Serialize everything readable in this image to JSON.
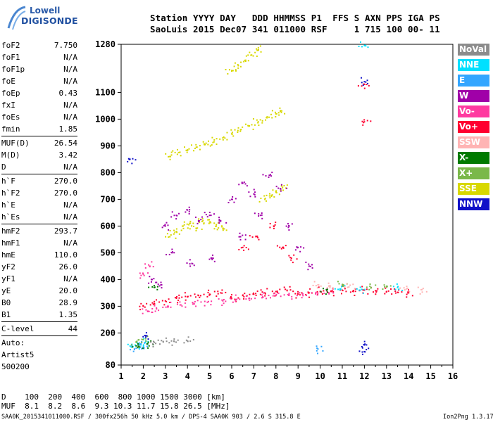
{
  "logo": {
    "brand_top": "Lowell",
    "brand_main": "DIGISONDE"
  },
  "header": {
    "line1": "Station YYYY DAY   DDD HHMMSS P1  FFS S AXN PPS IGA PS",
    "line2": "SaoLuis 2015 Dec07 341 011000 RSF     1 715 100 00- 11"
  },
  "params": {
    "group1": [
      {
        "key": "foF2",
        "value": "7.750"
      },
      {
        "key": "foF1",
        "value": "N/A"
      },
      {
        "key": "foF1p",
        "value": "N/A"
      },
      {
        "key": "foE",
        "value": "N/A"
      },
      {
        "key": "foEp",
        "value": "0.43"
      },
      {
        "key": "fxI",
        "value": "N/A"
      },
      {
        "key": "foEs",
        "value": "N/A"
      },
      {
        "key": "fmin",
        "value": "1.85"
      }
    ],
    "group2": [
      {
        "key": "MUF(D)",
        "value": "26.54"
      },
      {
        "key": "M(D)",
        "value": "3.42"
      },
      {
        "key": "D",
        "value": "N/A"
      }
    ],
    "group3": [
      {
        "key": "h`F",
        "value": "270.0"
      },
      {
        "key": "h`F2",
        "value": "270.0"
      },
      {
        "key": "h`E",
        "value": "N/A"
      },
      {
        "key": "h`Es",
        "value": "N/A"
      }
    ],
    "group4": [
      {
        "key": "hmF2",
        "value": "293.7"
      },
      {
        "key": "hmF1",
        "value": "N/A"
      },
      {
        "key": "hmE",
        "value": "110.0"
      },
      {
        "key": "yF2",
        "value": "26.0"
      },
      {
        "key": "yF1",
        "value": "N/A"
      },
      {
        "key": "yE",
        "value": "20.0"
      },
      {
        "key": "B0",
        "value": "28.9"
      },
      {
        "key": "B1",
        "value": "1.35"
      }
    ],
    "clevel": {
      "key": "C-level",
      "value": "44"
    },
    "auto": [
      "Auto:",
      "Artist5",
      "500200"
    ]
  },
  "legend": [
    {
      "label": "NoVal",
      "color": "#8c8c8c"
    },
    {
      "label": "NNE",
      "color": "#00e0ff"
    },
    {
      "label": "E",
      "color": "#33a6ff"
    },
    {
      "label": "W",
      "color": "#a000a8"
    },
    {
      "label": "Vo-",
      "color": "#ff3aa0"
    },
    {
      "label": "Vo+",
      "color": "#ff0030"
    },
    {
      "label": "SSW",
      "color": "#ffb4b4"
    },
    {
      "label": "X-",
      "color": "#007a00"
    },
    {
      "label": "X+",
      "color": "#7ab84a"
    },
    {
      "label": "SSE",
      "color": "#d8d800"
    },
    {
      "label": "NNW",
      "color": "#1010c8"
    }
  ],
  "chart_data": {
    "type": "scatter",
    "xlim": [
      1,
      16
    ],
    "ylim": [
      80,
      1280
    ],
    "x_ticks": [
      1,
      2,
      3,
      4,
      5,
      6,
      7,
      8,
      9,
      10,
      11,
      12,
      13,
      14,
      15,
      16
    ],
    "y_ticks": [
      80,
      200,
      300,
      400,
      500,
      600,
      700,
      800,
      900,
      1000,
      1100,
      1280
    ],
    "grid": false,
    "series": [
      {
        "color": "#d8d800",
        "points": [
          [
            3.2,
            860
          ],
          [
            3.6,
            875
          ],
          [
            4.0,
            885
          ],
          [
            4.4,
            895
          ],
          [
            4.8,
            905
          ],
          [
            5.2,
            915
          ],
          [
            5.6,
            930
          ],
          [
            6.0,
            945
          ],
          [
            6.4,
            960
          ],
          [
            6.8,
            975
          ],
          [
            7.2,
            990
          ],
          [
            7.6,
            1005
          ],
          [
            8.0,
            1020
          ],
          [
            8.2,
            1030
          ],
          [
            3.2,
            560
          ],
          [
            3.5,
            580
          ],
          [
            3.8,
            600
          ],
          [
            4.1,
            610
          ],
          [
            4.4,
            590
          ],
          [
            4.7,
            620
          ],
          [
            5.0,
            615
          ],
          [
            5.3,
            600
          ],
          [
            5.6,
            590
          ],
          [
            7.5,
            700
          ],
          [
            7.8,
            715
          ],
          [
            8.0,
            730
          ],
          [
            8.3,
            745
          ],
          [
            6.0,
            1180
          ],
          [
            6.3,
            1200
          ],
          [
            6.6,
            1220
          ],
          [
            6.9,
            1240
          ],
          [
            7.2,
            1260
          ]
        ]
      },
      {
        "color": "#a000a8",
        "points": [
          [
            3.0,
            600
          ],
          [
            3.5,
            640
          ],
          [
            4.0,
            660
          ],
          [
            4.5,
            620
          ],
          [
            5.0,
            640
          ],
          [
            5.5,
            620
          ],
          [
            6.0,
            700
          ],
          [
            6.5,
            760
          ],
          [
            7.0,
            720
          ],
          [
            7.7,
            790
          ],
          [
            8.2,
            740
          ],
          [
            8.6,
            600
          ],
          [
            9.0,
            520
          ],
          [
            9.5,
            450
          ],
          [
            3.3,
            500
          ],
          [
            4.2,
            460
          ],
          [
            5.1,
            480
          ],
          [
            6.4,
            560
          ],
          [
            7.3,
            640
          ],
          [
            2.4,
            400
          ],
          [
            2.8,
            380
          ]
        ]
      },
      {
        "color": "#ff0030",
        "points": [
          [
            2.0,
            300
          ],
          [
            2.5,
            310
          ],
          [
            3.0,
            320
          ],
          [
            3.5,
            330
          ],
          [
            4.0,
            335
          ],
          [
            4.5,
            340
          ],
          [
            5.0,
            345
          ],
          [
            5.5,
            350
          ],
          [
            6.0,
            330
          ],
          [
            6.5,
            340
          ],
          [
            7.0,
            345
          ],
          [
            7.5,
            350
          ],
          [
            8.0,
            355
          ],
          [
            8.5,
            360
          ],
          [
            9.0,
            345
          ],
          [
            9.5,
            350
          ],
          [
            10.0,
            355
          ],
          [
            10.5,
            355
          ],
          [
            11.0,
            360
          ],
          [
            11.5,
            355
          ],
          [
            12.0,
            360
          ],
          [
            12.5,
            358
          ],
          [
            13.0,
            355
          ],
          [
            13.5,
            352
          ],
          [
            14.0,
            350
          ],
          [
            6.5,
            520
          ],
          [
            7.1,
            560
          ],
          [
            7.9,
            600
          ],
          [
            8.3,
            520
          ],
          [
            8.7,
            480
          ],
          [
            12.0,
            990
          ],
          [
            12.0,
            1130
          ]
        ]
      },
      {
        "color": "#ff3aa0",
        "points": [
          [
            2.2,
            280
          ],
          [
            2.6,
            290
          ],
          [
            3.1,
            300
          ],
          [
            3.7,
            305
          ],
          [
            4.3,
            310
          ],
          [
            4.9,
            315
          ],
          [
            5.6,
            320
          ],
          [
            6.2,
            325
          ],
          [
            6.8,
            330
          ],
          [
            7.4,
            335
          ],
          [
            8.0,
            340
          ],
          [
            8.6,
            342
          ],
          [
            9.2,
            345
          ],
          [
            9.8,
            348
          ],
          [
            10.4,
            350
          ],
          [
            2.0,
            420
          ],
          [
            2.3,
            450
          ]
        ]
      },
      {
        "color": "#00e0ff",
        "points": [
          [
            1.5,
            150
          ],
          [
            1.8,
            155
          ],
          [
            2.1,
            165
          ],
          [
            12.0,
            1275
          ],
          [
            13.5,
            370
          ],
          [
            10.9,
            365
          ],
          [
            11.8,
            360
          ]
        ]
      },
      {
        "color": "#33a6ff",
        "points": [
          [
            1.6,
            140
          ],
          [
            2.0,
            145
          ],
          [
            9.9,
            140
          ],
          [
            1.9,
            160
          ]
        ]
      },
      {
        "color": "#7ab84a",
        "points": [
          [
            1.7,
            165
          ],
          [
            2.0,
            175
          ],
          [
            11.0,
            380
          ],
          [
            12.3,
            370
          ],
          [
            13.0,
            375
          ]
        ]
      },
      {
        "color": "#007a00",
        "points": [
          [
            1.8,
            150
          ],
          [
            2.2,
            160
          ],
          [
            2.5,
            370
          ],
          [
            10.3,
            360
          ]
        ]
      },
      {
        "color": "#ffb4b4",
        "points": [
          [
            9.9,
            380
          ],
          [
            10.4,
            375
          ],
          [
            11.3,
            372
          ],
          [
            13.9,
            365
          ],
          [
            14.6,
            362
          ]
        ]
      },
      {
        "color": "#1010c8",
        "points": [
          [
            1.4,
            850
          ],
          [
            12.0,
            1140
          ],
          [
            12.0,
            155
          ],
          [
            12.0,
            130
          ],
          [
            2.1,
            190
          ]
        ]
      },
      {
        "color": "#8c8c8c",
        "points": [
          [
            2.5,
            165
          ],
          [
            2.9,
            168
          ],
          [
            3.4,
            168
          ],
          [
            4.0,
            170
          ]
        ]
      }
    ]
  },
  "footer": {
    "row1": "D    100  200  400  600  800 1000 1500 3000 [km]",
    "row2": "MUF  8.1  8.2  8.6  9.3 10.3 11.7 15.8 26.5 [MHz]",
    "fileline": "SAA0K_2015341011000.RSF / 300fx256h 50 kHz 5.0 km / DPS-4 SAA0K 903 / 2.6 S 315.8 E",
    "version": "Ion2Png 1.3.17"
  }
}
